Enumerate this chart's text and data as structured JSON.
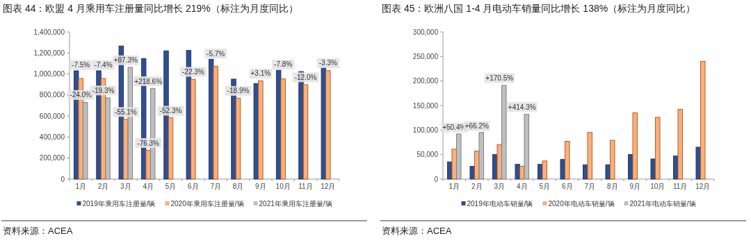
{
  "chart_data": [
    {
      "type": "bar",
      "title": "图表 44：欧盟 4 月乘用车注册量同比增长 219%（标注为月度同比）",
      "categories": [
        "1月",
        "2月",
        "3月",
        "4月",
        "5月",
        "6月",
        "7月",
        "8月",
        "9月",
        "10月",
        "11月",
        "12月"
      ],
      "series": [
        {
          "name": "2019年乘用车注册量/辆",
          "color": "#2f4f8f",
          "values": [
            1030000,
            1030000,
            1266000,
            1147000,
            1220000,
            1224000,
            1140000,
            951000,
            909000,
            1035000,
            1023000,
            1065000
          ]
        },
        {
          "name": "2020年乘用车注册量/辆",
          "color": "#f4b183",
          "values": [
            957000,
            957000,
            568000,
            273000,
            583000,
            949000,
            1072000,
            770000,
            935000,
            953000,
            898000,
            1032000
          ]
        },
        {
          "name": "2021年乘用车注册量/辆",
          "color": "#bfbfbf",
          "values": [
            729000,
            773000,
            1063000,
            863000,
            null,
            null,
            null,
            null,
            null,
            null,
            null,
            null
          ]
        }
      ],
      "ylim": [
        0,
        1400000
      ],
      "yticks": [
        {
          "value": 0,
          "label": "0"
        },
        {
          "value": 200000,
          "label": "200,000"
        },
        {
          "value": 400000,
          "label": "400,000"
        },
        {
          "value": 600000,
          "label": "600,000"
        },
        {
          "value": 800000,
          "label": "800,000"
        },
        {
          "value": 1000000,
          "label": "1,000,000"
        },
        {
          "value": 1200000,
          "label": "1,200,000"
        },
        {
          "value": 1400000,
          "label": "1,400,000"
        }
      ],
      "legend": "bottom",
      "annotations": [
        {
          "text": "-7.5%",
          "x": "1月",
          "y": 1085000
        },
        {
          "text": "-24.0%",
          "x": "1月",
          "y": 800000
        },
        {
          "text": "-7.4%",
          "x": "2月",
          "y": 1085000
        },
        {
          "text": "-19.3%",
          "x": "2月",
          "y": 843000
        },
        {
          "text": "+87.3%",
          "x": "3月",
          "y": 1130000
        },
        {
          "text": "-55.1%",
          "x": "3月",
          "y": 638000
        },
        {
          "text": "+218.6%",
          "x": "4月",
          "y": 931000
        },
        {
          "text": "-76.3%",
          "x": "4月",
          "y": 343000
        },
        {
          "text": "-52.3%",
          "x": "5月",
          "y": 650000
        },
        {
          "text": "-22.3%",
          "x": "6月",
          "y": 1020000
        },
        {
          "text": "-5.7%",
          "x": "7月",
          "y": 1195000
        },
        {
          "text": "-18.9%",
          "x": "8月",
          "y": 839000
        },
        {
          "text": "+3.1%",
          "x": "9月",
          "y": 1004000
        },
        {
          "text": "-7.8%",
          "x": "10月",
          "y": 1090000
        },
        {
          "text": "-12.0%",
          "x": "11月",
          "y": 968000
        },
        {
          "text": "-3.3%",
          "x": "12月",
          "y": 1103000
        },
        "资料来源：ACEA"
      ]
    },
    {
      "type": "bar",
      "title": "图表 45：欧洲八国 1-4 月电动车销量同比增长 138%（标注为月度同比）",
      "categories": [
        "1月",
        "2月",
        "3月",
        "4月",
        "5月",
        "6月",
        "7月",
        "8月",
        "9月",
        "10月",
        "11月",
        "12月"
      ],
      "series": [
        {
          "name": "2019年电动车销量/辆",
          "color": "#2f4f8f",
          "values": [
            35000,
            26000,
            50000,
            30000,
            30000,
            40000,
            29000,
            29000,
            50000,
            41000,
            47000,
            65000
          ]
        },
        {
          "name": "2020年电动车销量/辆",
          "color": "#f4b183",
          "values": [
            61000,
            57000,
            70000,
            26000,
            37000,
            77000,
            95000,
            79000,
            135000,
            126000,
            142000,
            240000
          ]
        },
        {
          "name": "2021年电动车销量/辆",
          "color": "#bfbfbf",
          "values": [
            92000,
            95000,
            191000,
            132000,
            null,
            null,
            null,
            null,
            null,
            null,
            null,
            null
          ]
        }
      ],
      "ylim": [
        0,
        300000
      ],
      "yticks": [
        {
          "value": 0,
          "label": "0"
        },
        {
          "value": 50000,
          "label": "50,000"
        },
        {
          "value": 100000,
          "label": "100,000"
        },
        {
          "value": 150000,
          "label": "150,000"
        },
        {
          "value": 200000,
          "label": "200,000"
        },
        {
          "value": 250000,
          "label": "250,000"
        },
        {
          "value": 300000,
          "label": "300,000"
        }
      ],
      "legend": "bottom",
      "annotations": [
        {
          "text": "+50.4%",
          "x": "1月",
          "y": 105000
        },
        {
          "text": "+66.2%",
          "x": "2月",
          "y": 108000
        },
        {
          "text": "+170.5%",
          "x": "3月",
          "y": 206000
        },
        {
          "text": "+414.3%",
          "x": "4月",
          "y": 147000
        },
        "资料来源：ACEA"
      ]
    }
  ]
}
